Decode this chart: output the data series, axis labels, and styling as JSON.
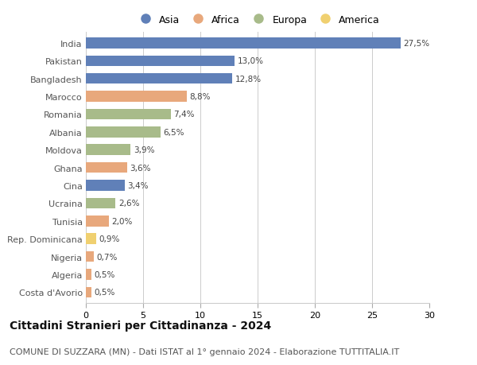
{
  "countries": [
    "India",
    "Pakistan",
    "Bangladesh",
    "Marocco",
    "Romania",
    "Albania",
    "Moldova",
    "Ghana",
    "Cina",
    "Ucraina",
    "Tunisia",
    "Rep. Dominicana",
    "Nigeria",
    "Algeria",
    "Costa d'Avorio"
  ],
  "values": [
    27.5,
    13.0,
    12.8,
    8.8,
    7.4,
    6.5,
    3.9,
    3.6,
    3.4,
    2.6,
    2.0,
    0.9,
    0.7,
    0.5,
    0.5
  ],
  "labels": [
    "27,5%",
    "13,0%",
    "12,8%",
    "8,8%",
    "7,4%",
    "6,5%",
    "3,9%",
    "3,6%",
    "3,4%",
    "2,6%",
    "2,0%",
    "0,9%",
    "0,7%",
    "0,5%",
    "0,5%"
  ],
  "continents": [
    "Asia",
    "Asia",
    "Asia",
    "Africa",
    "Europa",
    "Europa",
    "Europa",
    "Africa",
    "Asia",
    "Europa",
    "Africa",
    "America",
    "Africa",
    "Africa",
    "Africa"
  ],
  "colors": {
    "Asia": "#6080b8",
    "Africa": "#e8a87c",
    "Europa": "#a8bb8a",
    "America": "#f0d070"
  },
  "legend_order": [
    "Asia",
    "Africa",
    "Europa",
    "America"
  ],
  "xlim": [
    0,
    30
  ],
  "xticks": [
    0,
    5,
    10,
    15,
    20,
    25,
    30
  ],
  "title": "Cittadini Stranieri per Cittadinanza - 2024",
  "subtitle": "COMUNE DI SUZZARA (MN) - Dati ISTAT al 1° gennaio 2024 - Elaborazione TUTTITALIA.IT",
  "title_fontsize": 10,
  "subtitle_fontsize": 8,
  "bg_color": "#ffffff",
  "grid_color": "#cccccc",
  "bar_height": 0.6
}
